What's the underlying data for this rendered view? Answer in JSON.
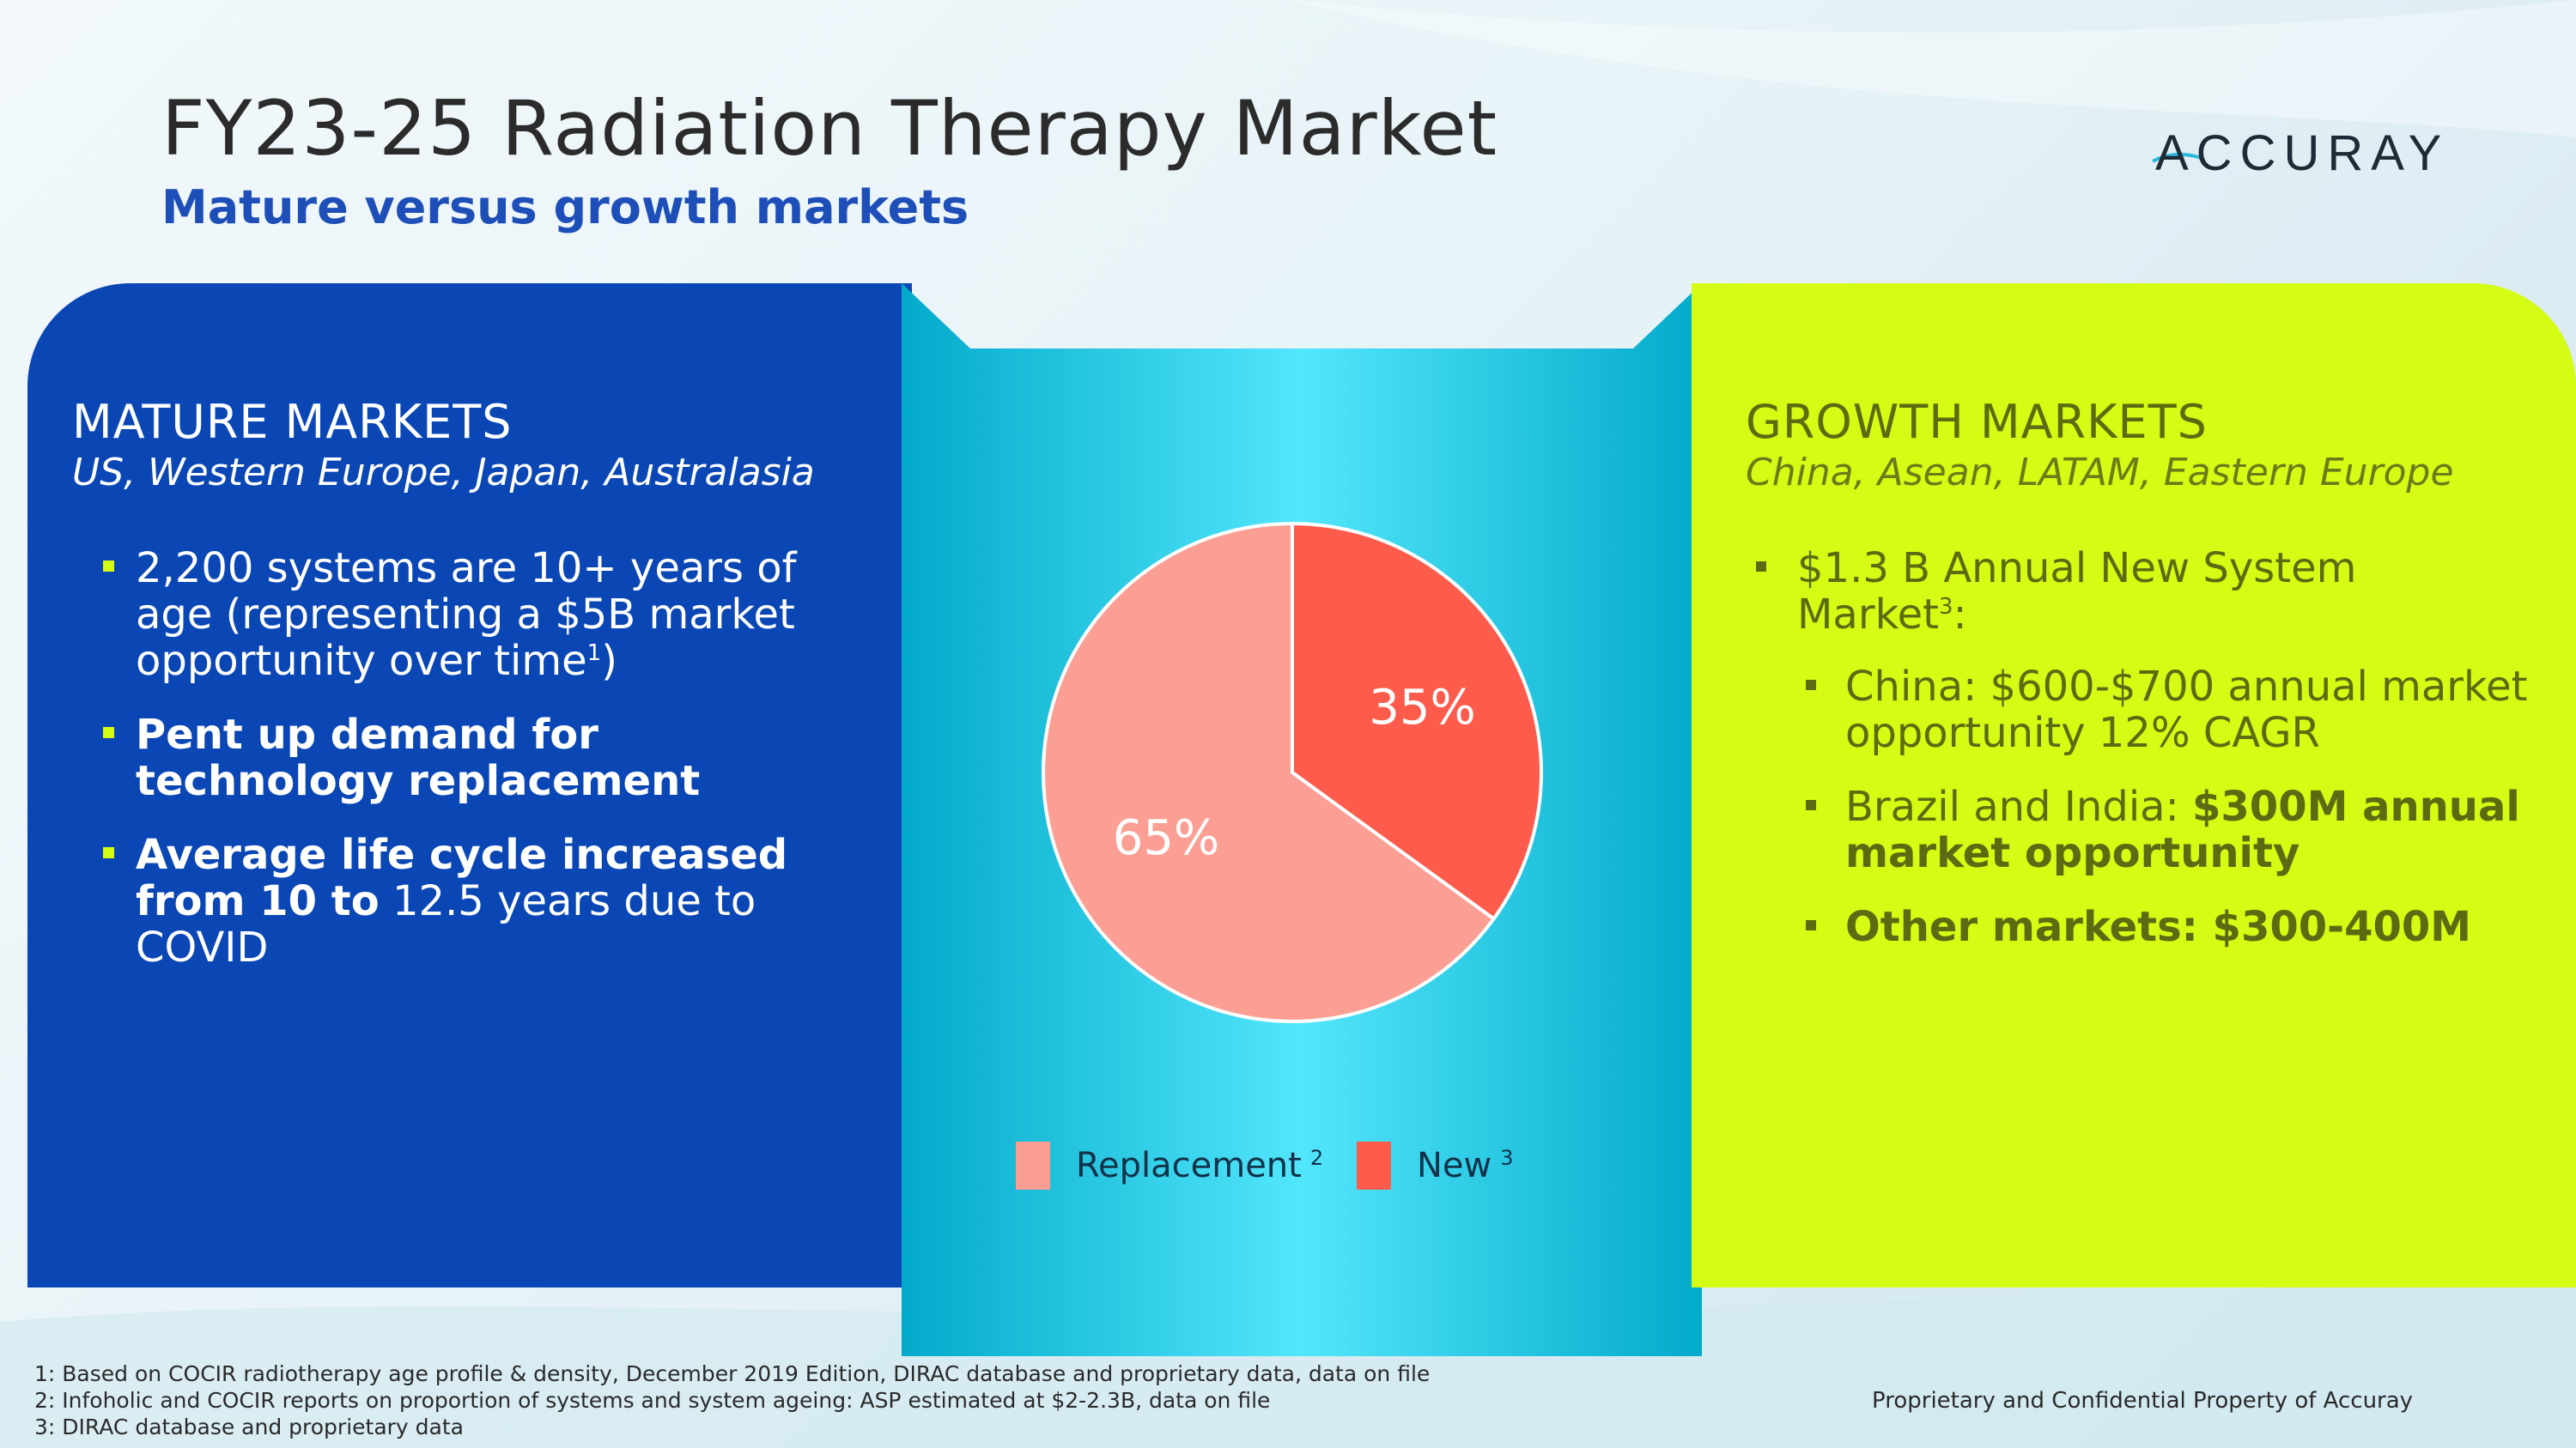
{
  "slide": {
    "title": "FY23-25 Radiation Therapy Market",
    "subtitle": "Mature versus growth markets",
    "logo": "ACCURAY"
  },
  "colors": {
    "mature_panel": "#0a47b5",
    "growth_panel": "#d4fc14",
    "replacement": "#fb9f95",
    "new": "#fd5c4c",
    "center_light": "#52e6fb",
    "center_dark": "#02aaca"
  },
  "mature": {
    "heading": "MATURE MARKETS",
    "regions": "US, Western Europe, Japan, Australasia",
    "bullet1": {
      "text": "2,200 systems are 10+ years of age (representing a $5B market opportunity over time",
      "sup": "1",
      "tail": ")"
    },
    "bullet2": {
      "bold": "Pent up demand for technology replacement"
    },
    "bullet3": {
      "bold": "Average life cycle increased from 10 to",
      "normal": " 12.5 years due to COVID"
    }
  },
  "growth": {
    "heading": "GROWTH MARKETS",
    "regions": "China, Asean, LATAM, Eastern Europe",
    "bullet1": {
      "text": "$1.3 B Annual New System Market",
      "sup": "3",
      "tail": ":"
    },
    "sub1": {
      "text": "China: $600-$700 annual market opportunity 12% CAGR"
    },
    "sub2": {
      "normal": "Brazil and India: ",
      "bold": "$300M annual market opportunity"
    },
    "sub3": {
      "bold": "Other markets: $300-400M"
    }
  },
  "chart_data": {
    "type": "pie",
    "title": "",
    "categories": [
      "Replacement",
      "New"
    ],
    "values": [
      65,
      35
    ],
    "value_labels": [
      "65%",
      "35%"
    ],
    "legend_sups": [
      "2",
      "3"
    ],
    "legend_position": "bottom"
  },
  "footnotes": {
    "f1": "1: Based on COCIR radiotherapy age profile & density, December 2019 Edition, DIRAC database and proprietary data, data on file",
    "f2": "2: Infoholic and COCIR reports on proportion of systems and system ageing: ASP estimated at $2-2.3B, data on file",
    "f3": "3: DIRAC database and proprietary data"
  },
  "proprietary": "Proprietary and Confidential Property of Accuray"
}
